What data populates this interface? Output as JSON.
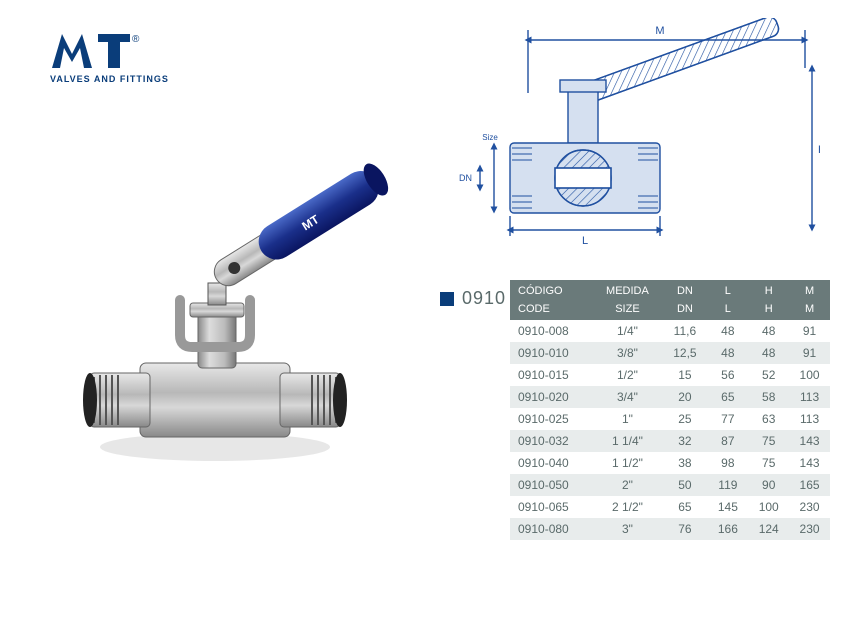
{
  "brand": {
    "name": "MT",
    "registered": "®",
    "tagline": "VALVES AND FITTINGS",
    "logo_color": "#0a3d7a"
  },
  "model": {
    "number": "0910",
    "accent_color": "#0a3d7a"
  },
  "diagram": {
    "line_color": "#2050a0",
    "fill_color": "#d5e0f0",
    "labels": {
      "M": "M",
      "H": "H",
      "L": "L",
      "DN": "DN",
      "Size": "Size"
    }
  },
  "table": {
    "header_bg": "#6a7a7a",
    "header_fg": "#ffffff",
    "row_alt_bg": "#e8ecec",
    "text_color": "#5a6a6a",
    "columns_top": [
      "CÓDIGO",
      "MEDIDA",
      "DN",
      "L",
      "H",
      "M"
    ],
    "columns_bottom": [
      "CODE",
      "SIZE",
      "DN",
      "L",
      "H",
      "M"
    ],
    "rows": [
      {
        "code": "0910-008",
        "size": "1/4\"",
        "dn": "11,6",
        "l": "48",
        "h": "48",
        "m": "91"
      },
      {
        "code": "0910-010",
        "size": "3/8\"",
        "dn": "12,5",
        "l": "48",
        "h": "48",
        "m": "91"
      },
      {
        "code": "0910-015",
        "size": "1/2\"",
        "dn": "15",
        "l": "56",
        "h": "52",
        "m": "100"
      },
      {
        "code": "0910-020",
        "size": "3/4\"",
        "dn": "20",
        "l": "65",
        "h": "58",
        "m": "113"
      },
      {
        "code": "0910-025",
        "size": "1\"",
        "dn": "25",
        "l": "77",
        "h": "63",
        "m": "113"
      },
      {
        "code": "0910-032",
        "size": "1 1/4\"",
        "dn": "32",
        "l": "87",
        "h": "75",
        "m": "143"
      },
      {
        "code": "0910-040",
        "size": "1 1/2\"",
        "dn": "38",
        "l": "98",
        "h": "75",
        "m": "143"
      },
      {
        "code": "0910-050",
        "size": "2\"",
        "dn": "50",
        "l": "119",
        "h": "90",
        "m": "165"
      },
      {
        "code": "0910-065",
        "size": "2 1/2\"",
        "dn": "65",
        "l": "145",
        "h": "100",
        "m": "230"
      },
      {
        "code": "0910-080",
        "size": "3\"",
        "dn": "76",
        "l": "166",
        "h": "124",
        "m": "230"
      }
    ]
  }
}
